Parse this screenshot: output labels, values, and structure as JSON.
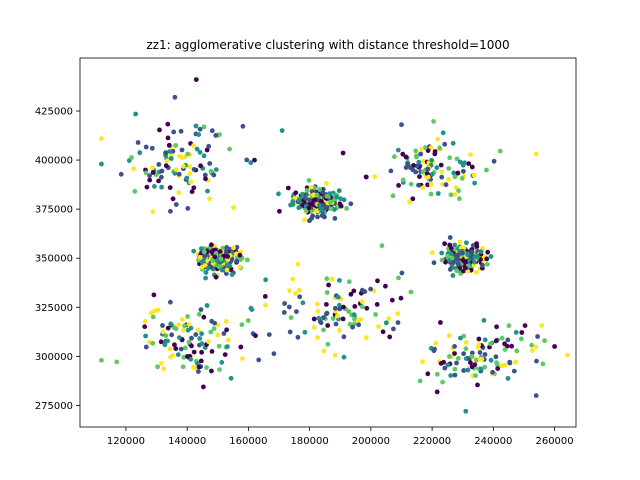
{
  "chart_data": {
    "type": "scatter",
    "title": "zz1: agglomerative clustering with distance threshold=1000",
    "xlabel": "",
    "ylabel": "",
    "xlim": [
      105000,
      267000
    ],
    "ylim": [
      264000,
      452000
    ],
    "x_ticks": [
      120000,
      140000,
      160000,
      180000,
      200000,
      220000,
      240000,
      260000
    ],
    "y_ticks": [
      275000,
      300000,
      325000,
      350000,
      375000,
      400000,
      425000
    ],
    "grid": false,
    "legend": "none",
    "palette": [
      "#440154",
      "#3b528b",
      "#21918c",
      "#5ec962",
      "#fde725"
    ],
    "marker_size": 2.4,
    "clusters": [
      {
        "cx": 137000,
        "cy": 398000,
        "sx": 9000,
        "sy": 10000,
        "n": 110
      },
      {
        "cx": 182000,
        "cy": 379000,
        "sx": 3500,
        "sy": 3300,
        "n": 260
      },
      {
        "cx": 218000,
        "cy": 396000,
        "sx": 9500,
        "sy": 7500,
        "n": 110
      },
      {
        "cx": 150000,
        "cy": 350000,
        "sx": 3500,
        "sy": 3000,
        "n": 260
      },
      {
        "cx": 231000,
        "cy": 350000,
        "sx": 3300,
        "sy": 3000,
        "n": 260
      },
      {
        "cx": 189000,
        "cy": 324000,
        "sx": 11000,
        "sy": 9500,
        "n": 110
      },
      {
        "cx": 141000,
        "cy": 307000,
        "sx": 8000,
        "sy": 8500,
        "n": 110
      },
      {
        "cx": 236000,
        "cy": 300000,
        "sx": 9000,
        "sy": 9000,
        "n": 110
      }
    ],
    "outliers": [
      [
        143000,
        441000
      ],
      [
        136000,
        432000
      ],
      [
        112000,
        411000
      ],
      [
        112000,
        398000
      ],
      [
        112000,
        298000
      ],
      [
        254000,
        403000
      ],
      [
        254000,
        280000
      ],
      [
        260000,
        305000
      ],
      [
        171000,
        415000
      ],
      [
        162000,
        400000
      ],
      [
        210000,
        418000
      ],
      [
        231000,
        272000
      ]
    ]
  }
}
